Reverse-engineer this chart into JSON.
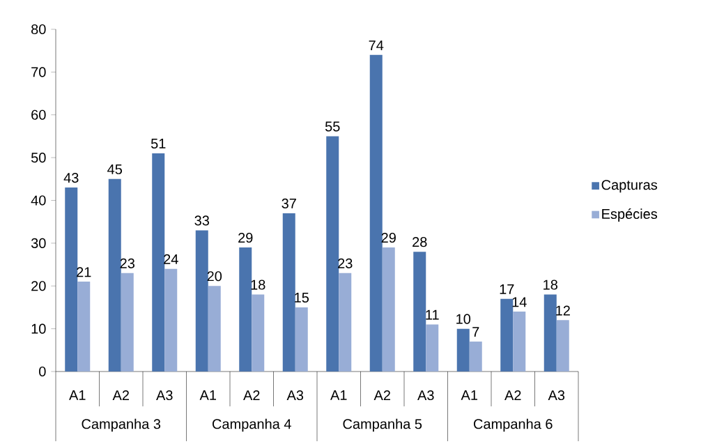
{
  "chart_data": {
    "type": "bar",
    "categories": [
      "A1",
      "A2",
      "A3",
      "A1",
      "A2",
      "A3",
      "A1",
      "A2",
      "A3",
      "A1",
      "A2",
      "A3"
    ],
    "annotations": [
      "Campanha 3",
      "Campanha 4",
      "Campanha 5",
      "Campanha 6"
    ],
    "series": [
      {
        "name": "Capturas",
        "color": "#4a74ae",
        "values": [
          43,
          45,
          51,
          33,
          29,
          37,
          55,
          74,
          28,
          10,
          17,
          18
        ]
      },
      {
        "name": "Espécies",
        "color": "#98add6",
        "values": [
          21,
          23,
          24,
          20,
          18,
          15,
          23,
          29,
          11,
          7,
          14,
          12
        ]
      }
    ],
    "ylim": [
      0,
      80
    ],
    "yticks": [
      0,
      10,
      20,
      30,
      40,
      50,
      60,
      70,
      80
    ],
    "data_labels": true,
    "legend": "right",
    "grid": false
  }
}
